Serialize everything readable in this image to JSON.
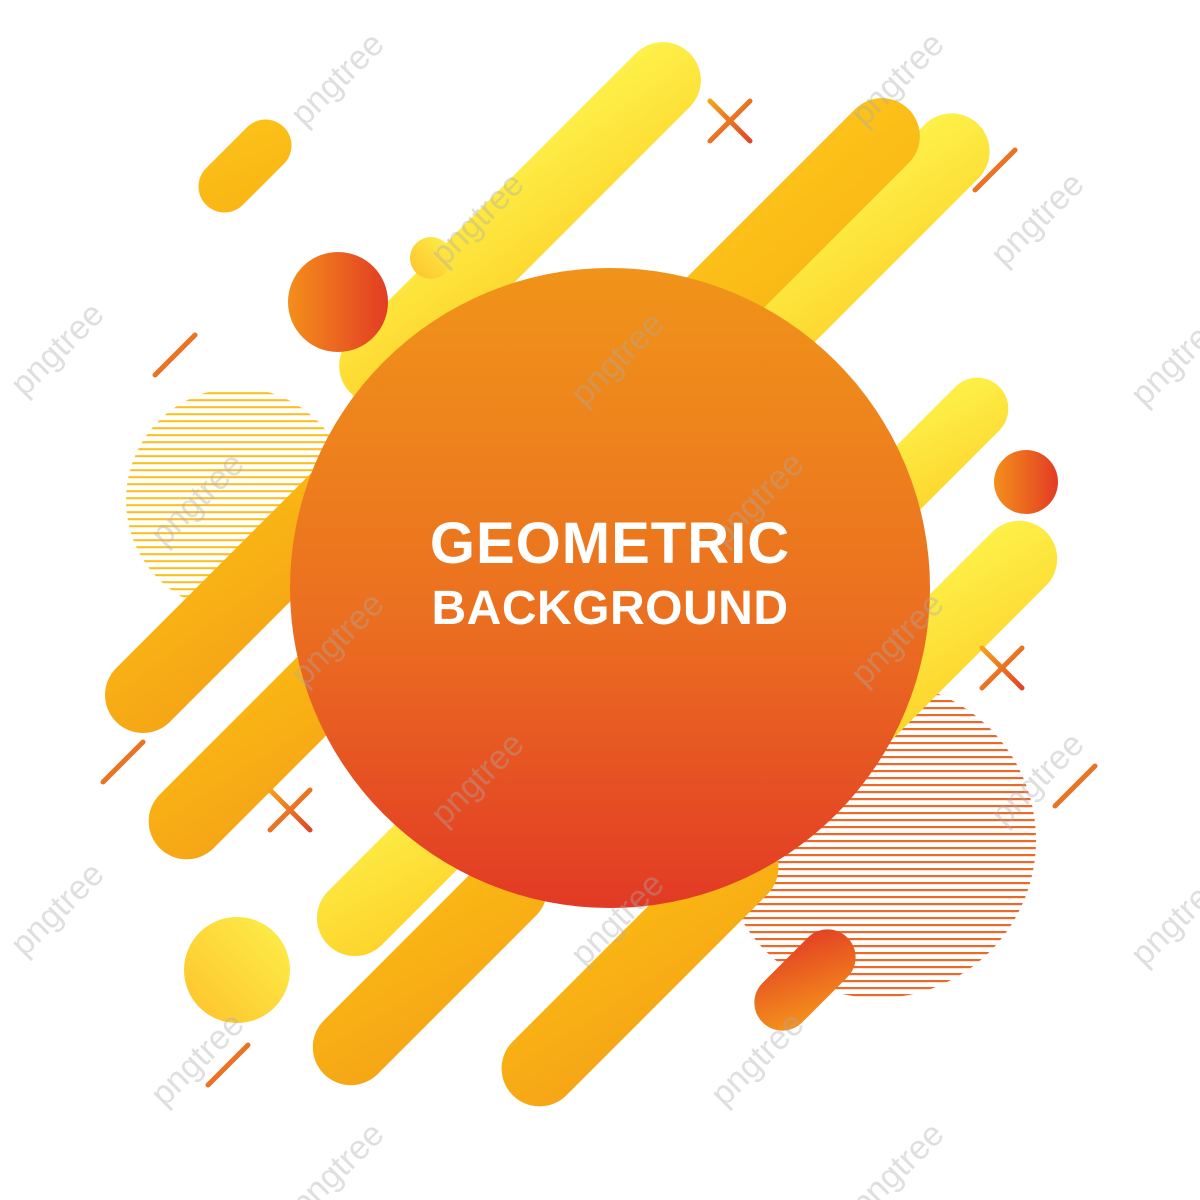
{
  "title": {
    "line1": "GEOMETRIC",
    "line2": "BACKGROUND"
  },
  "watermark": "pngtree",
  "colors": {
    "background": "#ffffff",
    "red_orange": "#e23a22",
    "orange": "#f08a1c",
    "amber": "#fbb611",
    "yellow": "#fdf145",
    "text": "#ffffff"
  }
}
